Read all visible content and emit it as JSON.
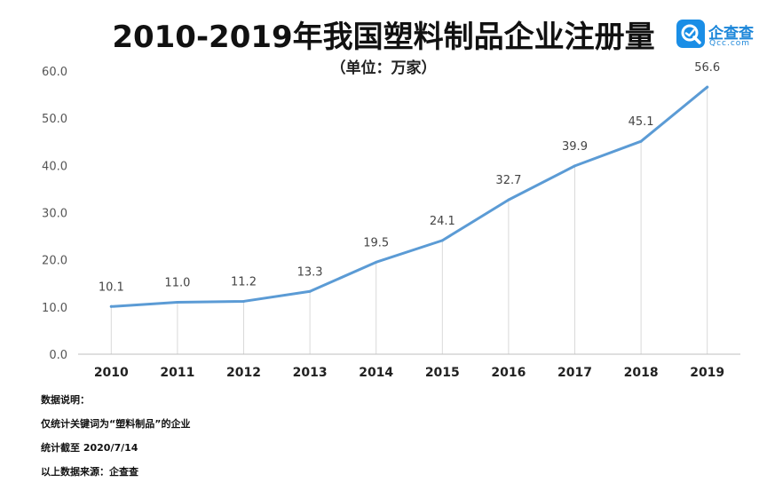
{
  "chart_data": {
    "type": "line",
    "title": "2010-2019年我国塑料制品企业注册量",
    "subtitle": "（单位：万家）",
    "categories": [
      "2010",
      "2011",
      "2012",
      "2013",
      "2014",
      "2015",
      "2016",
      "2017",
      "2018",
      "2019"
    ],
    "values": [
      10.1,
      11.0,
      11.2,
      13.3,
      19.5,
      24.1,
      32.7,
      39.9,
      45.1,
      56.6
    ],
    "value_labels": [
      "10.1",
      "11.0",
      "11.2",
      "13.3",
      "19.5",
      "24.1",
      "32.7",
      "39.9",
      "45.1",
      "56.6"
    ],
    "y_ticks": [
      "0.0",
      "10.0",
      "20.0",
      "30.0",
      "40.0",
      "50.0",
      "60.0"
    ],
    "ylim": [
      0,
      60
    ],
    "xlabel": "",
    "ylabel": "",
    "grid": "vertical",
    "line_color": "#5b9bd5",
    "grid_color": "#d9d9d9"
  },
  "logo": {
    "name": "企查查",
    "domain": "Qcc.com",
    "icon": "magnifier-q-icon",
    "color": "#1a8ee6"
  },
  "notes": {
    "heading": "数据说明：",
    "line1": "仅统计关键词为“塑料制品”的企业",
    "line2": "统计截至 2020/7/14",
    "line3": "以上数据来源：企查查"
  }
}
